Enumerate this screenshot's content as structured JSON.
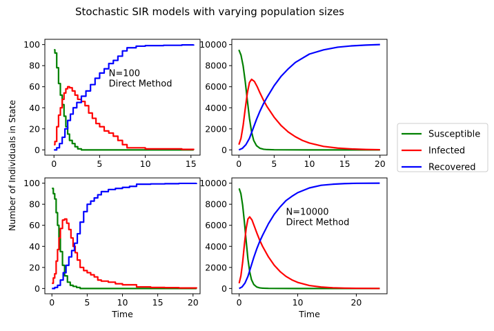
{
  "title": "Stochastic SIR models with varying population sizes",
  "ylabel": "Number of Individuals in State",
  "xlabel": "Time",
  "legend": {
    "placement": "right",
    "entries": [
      {
        "name": "Susceptible",
        "color": "#008000"
      },
      {
        "name": "Infected",
        "color": "#ff0000"
      },
      {
        "name": "Recovered",
        "color": "#0000ff"
      }
    ]
  },
  "chart_data": [
    {
      "type": "line",
      "panel": "top-left",
      "annotation": [
        "N=100",
        "Direct Method"
      ],
      "annotation_at": [
        6.0,
        60
      ],
      "xlim": [
        -1.0,
        16.0
      ],
      "ylim": [
        -5,
        105
      ],
      "xticks": [
        0,
        5,
        10,
        15
      ],
      "yticks": [
        0,
        20,
        40,
        60,
        80,
        100
      ],
      "show_xlabel": false,
      "series": [
        {
          "name": "Susceptible",
          "color": "#008000",
          "step": true,
          "x": [
            0,
            0.1,
            0.3,
            0.5,
            0.7,
            0.9,
            1.1,
            1.3,
            1.5,
            1.7,
            2.0,
            2.3,
            2.6,
            3.0,
            5.0,
            10.0,
            15.3
          ],
          "y": [
            95,
            92,
            78,
            63,
            52,
            43,
            32,
            22,
            15,
            9,
            6,
            3,
            1,
            0,
            0,
            0,
            0
          ]
        },
        {
          "name": "Infected",
          "color": "#ff0000",
          "step": true,
          "x": [
            0,
            0.1,
            0.3,
            0.5,
            0.7,
            0.9,
            1.1,
            1.3,
            1.5,
            1.7,
            2.0,
            2.3,
            2.6,
            3.0,
            3.4,
            3.8,
            4.2,
            4.6,
            5.0,
            5.5,
            6.0,
            6.5,
            7.0,
            7.5,
            8.0,
            10.0,
            12.0,
            14.0,
            15.3
          ],
          "y": [
            5,
            8,
            22,
            33,
            40,
            48,
            54,
            58,
            60,
            59,
            56,
            52,
            48,
            46,
            42,
            35,
            30,
            25,
            22,
            18,
            16,
            13,
            9,
            5,
            2,
            1,
            1,
            0.5,
            0
          ]
        },
        {
          "name": "Recovered",
          "color": "#0000ff",
          "step": true,
          "x": [
            0,
            0.3,
            0.6,
            0.9,
            1.2,
            1.5,
            1.8,
            2.1,
            2.5,
            3.0,
            3.5,
            4.0,
            4.5,
            5.0,
            5.5,
            6.0,
            6.5,
            7.0,
            7.5,
            8.0,
            9.0,
            10.0,
            12.0,
            14.0,
            15.3
          ],
          "y": [
            0,
            2,
            6,
            12,
            20,
            28,
            34,
            40,
            45,
            51,
            56,
            62,
            68,
            73,
            77,
            82,
            85,
            89,
            94,
            97,
            98.5,
            99,
            99.3,
            99.7,
            100
          ]
        }
      ]
    },
    {
      "type": "line",
      "panel": "top-right",
      "annotation": [],
      "xlim": [
        -1.0,
        21.0
      ],
      "ylim": [
        -500,
        10500
      ],
      "xticks": [
        0,
        5,
        10,
        15,
        20
      ],
      "yticks": [
        0,
        2000,
        4000,
        6000,
        8000,
        10000
      ],
      "show_xlabel": false,
      "series": [
        {
          "name": "Susceptible",
          "color": "#008000",
          "step": false,
          "x": [
            0,
            0.3,
            0.6,
            0.9,
            1.2,
            1.5,
            1.8,
            2.1,
            2.5,
            3.0,
            3.5,
            4.0,
            5.0,
            10.0,
            20.0
          ],
          "y": [
            9500,
            9000,
            8000,
            6500,
            4700,
            3000,
            1700,
            900,
            400,
            150,
            60,
            30,
            10,
            0,
            0
          ]
        },
        {
          "name": "Infected",
          "color": "#ff0000",
          "step": false,
          "x": [
            0,
            0.3,
            0.6,
            0.9,
            1.2,
            1.5,
            1.8,
            2.2,
            2.6,
            3.0,
            3.5,
            4.0,
            5.0,
            6.0,
            7.0,
            8.0,
            9.0,
            10.0,
            12.0,
            14.0,
            16.0,
            18.0,
            20.0
          ],
          "y": [
            500,
            1100,
            2300,
            3900,
            5400,
            6400,
            6700,
            6500,
            6000,
            5400,
            4700,
            4100,
            3100,
            2300,
            1700,
            1250,
            900,
            650,
            330,
            170,
            90,
            40,
            20
          ]
        },
        {
          "name": "Recovered",
          "color": "#0000ff",
          "step": false,
          "x": [
            0,
            0.5,
            1.0,
            1.5,
            2.0,
            2.5,
            3.0,
            3.5,
            4.0,
            5.0,
            6.0,
            7.0,
            8.0,
            9.0,
            10.0,
            12.0,
            14.0,
            16.0,
            18.0,
            20.0
          ],
          "y": [
            0,
            150,
            500,
            1100,
            2000,
            2900,
            3700,
            4400,
            5000,
            6100,
            7000,
            7700,
            8300,
            8700,
            9100,
            9500,
            9750,
            9880,
            9950,
            10000
          ]
        }
      ]
    },
    {
      "type": "line",
      "panel": "bottom-left",
      "annotation": [],
      "xlim": [
        -1.0,
        21.0
      ],
      "ylim": [
        -5,
        105
      ],
      "xticks": [
        0,
        5,
        10,
        15,
        20
      ],
      "yticks": [
        0,
        20,
        40,
        60,
        80,
        100
      ],
      "show_xlabel": true,
      "series": [
        {
          "name": "Susceptible",
          "color": "#008000",
          "step": true,
          "x": [
            0,
            0.2,
            0.4,
            0.6,
            0.8,
            1.0,
            1.2,
            1.5,
            1.8,
            2.2,
            2.6,
            3.0,
            3.5,
            4.0,
            10.0,
            20.5
          ],
          "y": [
            95,
            90,
            85,
            72,
            60,
            48,
            35,
            22,
            12,
            6,
            3,
            2,
            1,
            0,
            0,
            0
          ]
        },
        {
          "name": "Infected",
          "color": "#ff0000",
          "step": true,
          "x": [
            0,
            0.2,
            0.4,
            0.6,
            0.8,
            1.0,
            1.2,
            1.5,
            1.8,
            2.1,
            2.4,
            2.7,
            3.0,
            3.3,
            3.6,
            4.0,
            4.5,
            5.0,
            5.5,
            6.0,
            6.5,
            7.0,
            8.0,
            9.0,
            10.0,
            12.0,
            14.0,
            16.0,
            18.0,
            20.5
          ],
          "y": [
            5,
            10,
            14,
            26,
            37,
            48,
            57,
            65,
            66,
            62,
            56,
            48,
            40,
            34,
            27,
            20,
            17,
            15,
            13,
            11,
            8,
            7,
            6,
            4.5,
            3.5,
            1.5,
            1,
            0.8,
            0.5,
            0
          ]
        },
        {
          "name": "Recovered",
          "color": "#0000ff",
          "step": true,
          "x": [
            0,
            0.4,
            0.8,
            1.2,
            1.6,
            2.0,
            2.4,
            2.8,
            3.2,
            3.6,
            4.0,
            4.5,
            5.0,
            5.5,
            6.0,
            6.5,
            7.0,
            8.0,
            9.0,
            10.0,
            11.0,
            12.0,
            14.0,
            16.0,
            18.0,
            20.5
          ],
          "y": [
            0,
            1,
            3,
            8,
            15,
            22,
            30,
            36,
            43,
            52,
            63,
            73,
            80,
            83,
            86,
            89,
            92,
            94,
            95,
            96,
            97,
            99,
            99.3,
            99.5,
            99.8,
            100
          ]
        }
      ]
    },
    {
      "type": "line",
      "panel": "bottom-right",
      "annotation": [
        "N=10000",
        "Direct Method"
      ],
      "annotation_at": [
        8.0,
        6000
      ],
      "xlim": [
        -1.25,
        25.25
      ],
      "ylim": [
        -500,
        10500
      ],
      "xticks": [
        0,
        10,
        20
      ],
      "yticks": [
        0,
        2000,
        4000,
        6000,
        8000,
        10000
      ],
      "show_xlabel": true,
      "series": [
        {
          "name": "Susceptible",
          "color": "#008000",
          "step": false,
          "x": [
            0,
            0.3,
            0.6,
            0.9,
            1.2,
            1.5,
            1.8,
            2.1,
            2.5,
            3.0,
            3.5,
            4.0,
            5.0,
            10.0,
            24.0
          ],
          "y": [
            9500,
            9000,
            7900,
            6300,
            4500,
            2800,
            1600,
            850,
            380,
            140,
            60,
            30,
            10,
            0,
            0
          ]
        },
        {
          "name": "Infected",
          "color": "#ff0000",
          "step": false,
          "x": [
            0,
            0.3,
            0.6,
            0.9,
            1.2,
            1.5,
            1.8,
            2.2,
            2.6,
            3.0,
            3.5,
            4.0,
            5.0,
            6.0,
            7.0,
            8.0,
            9.0,
            10.0,
            12.0,
            14.0,
            16.0,
            18.0,
            20.0,
            22.0,
            24.0
          ],
          "y": [
            500,
            1200,
            2500,
            4200,
            5700,
            6600,
            6800,
            6500,
            5900,
            5300,
            4600,
            4000,
            3000,
            2200,
            1600,
            1150,
            820,
            580,
            280,
            140,
            70,
            35,
            20,
            10,
            5
          ]
        },
        {
          "name": "Recovered",
          "color": "#0000ff",
          "step": false,
          "x": [
            0,
            0.5,
            1.0,
            1.5,
            2.0,
            2.5,
            3.0,
            3.5,
            4.0,
            5.0,
            6.0,
            7.0,
            8.0,
            9.0,
            10.0,
            12.0,
            14.0,
            16.0,
            18.0,
            20.0,
            24.0
          ],
          "y": [
            0,
            150,
            520,
            1150,
            2050,
            2950,
            3750,
            4450,
            5050,
            6150,
            7050,
            7750,
            8350,
            8750,
            9100,
            9550,
            9800,
            9900,
            9960,
            9990,
            10000
          ]
        }
      ]
    }
  ]
}
